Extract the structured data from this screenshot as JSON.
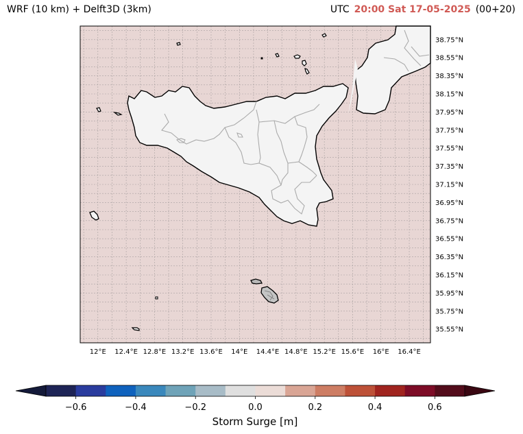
{
  "header": {
    "model": "WRF (10 km) + Delft3D (3km)",
    "utc_label": "UTC",
    "timestamp": "20:00 Sat 17-05-2025",
    "forecast_step": "(00+20)"
  },
  "map": {
    "lon_range": [
      11.75,
      16.7
    ],
    "lat_range": [
      35.4,
      38.9
    ],
    "lon_ticks": [
      "12°E",
      "12.4°E",
      "12.8°E",
      "13.2°E",
      "13.6°E",
      "14°E",
      "14.4°E",
      "14.8°E",
      "15.2°E",
      "15.6°E",
      "16°E",
      "16.4°E"
    ],
    "lat_ticks": [
      "38.75°N",
      "38.55°N",
      "38.35°N",
      "38.15°N",
      "37.95°N",
      "37.75°N",
      "37.55°N",
      "37.35°N",
      "37.15°N",
      "36.95°N",
      "36.75°N",
      "36.55°N",
      "36.35°N",
      "36.15°N",
      "35.95°N",
      "35.75°N",
      "35.55°N"
    ],
    "sea_color": "#e8d6d4",
    "land_color": "#f4f4f4",
    "gridlines": true
  },
  "colorbar": {
    "label": "Storm Surge [m]",
    "tick_labels": [
      "−0.6",
      "−0.4",
      "−0.2",
      "0.0",
      "0.2",
      "0.4",
      "0.6"
    ],
    "tick_values": [
      -0.6,
      -0.4,
      -0.2,
      0.0,
      0.2,
      0.4,
      0.6
    ],
    "range": [
      -0.7,
      0.7
    ],
    "extend": "both",
    "colors": [
      "#1e2456",
      "#2a3c9e",
      "#0f62bd",
      "#3a88bc",
      "#6fa3b8",
      "#a8bcc7",
      "#dfdfdf",
      "#ebdcd7",
      "#d9a595",
      "#cd7d64",
      "#bd5138",
      "#a0241f",
      "#7d0c27",
      "#530c1b"
    ],
    "under_color": "#141a3a",
    "over_color": "#3a0712"
  }
}
